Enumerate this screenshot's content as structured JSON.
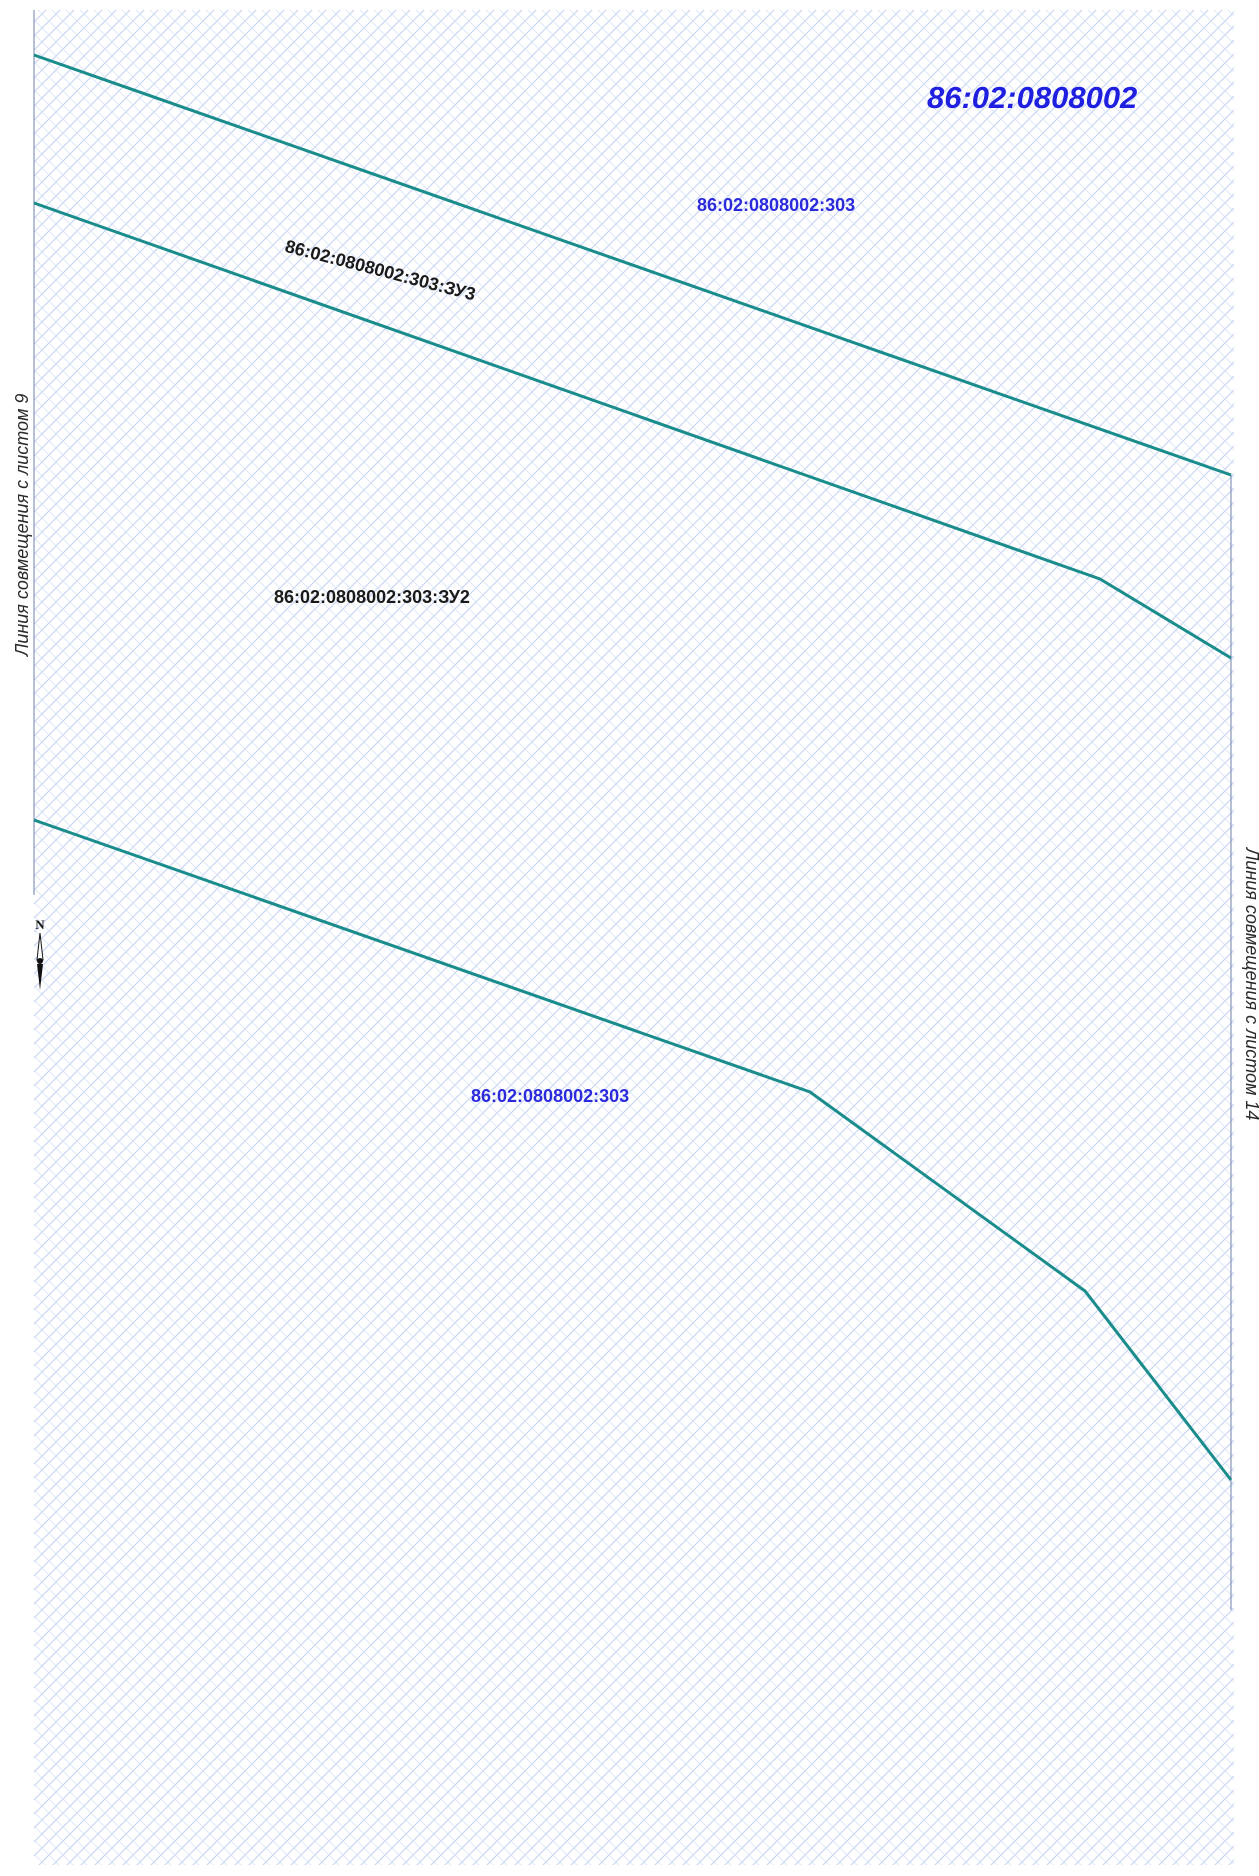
{
  "map": {
    "quarter_number": "86:02:0808002",
    "parcels": {
      "top_303_label": "86:02:0808002:303",
      "bottom_303_label": "86:02:0808002:303",
      "zu3_label": "86:02:0808002:303:ЗУ3",
      "zu2_label": "86:02:0808002:303:ЗУ2"
    },
    "match_lines": {
      "left": "Линия совмещения с листом 9",
      "right": "Линия совмещения с листом 14"
    },
    "north_arrow": {
      "label": "N"
    },
    "colors": {
      "boundary": "#1a8c8c",
      "quarter_text": "#1f1fe0",
      "parcel_text_blue": "#2b2bdc",
      "parcel_text_black": "#1a1a1a",
      "hatch": "#c9d6f2",
      "match_line": "#6f7fa8"
    }
  }
}
